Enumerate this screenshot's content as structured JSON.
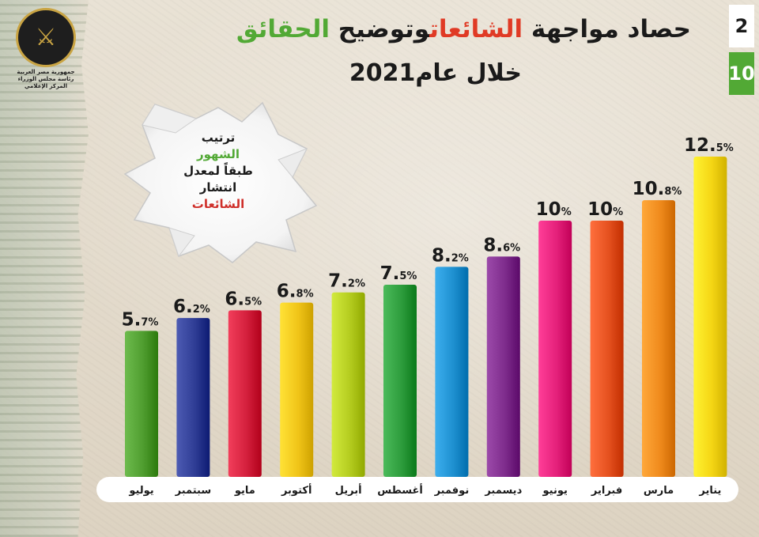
{
  "header": {
    "title_part1": "حصاد مواجهة",
    "title_part2": "الشائعات",
    "title_part3": "وتوضيح",
    "title_part4": "الحقائق",
    "subtitle": "خلال عام2021"
  },
  "pager": {
    "current": "2",
    "total": "10"
  },
  "logo": {
    "top_text": "جمهورية مصر العربية",
    "mid_text": "رئاسة مجلس الوزراء",
    "bottom_text": "المركز الإعلامي"
  },
  "callout": {
    "line1": "ترتيب",
    "line2": "الشهور",
    "line3": "طبقاً لمعدل",
    "line4": "انتشار",
    "line5": "الشائعات"
  },
  "chart_data": {
    "type": "bar",
    "categories": [
      "يوليو",
      "سبتمبر",
      "مايو",
      "أكتوبر",
      "أبريل",
      "أغسطس",
      "نوفمبر",
      "ديسمبر",
      "يونيو",
      "فبراير",
      "مارس",
      "يناير"
    ],
    "values": [
      5.7,
      6.2,
      6.5,
      6.8,
      7.2,
      7.5,
      8.2,
      8.6,
      10,
      10,
      10.8,
      12.5
    ],
    "labels_major": [
      "5.",
      "6.",
      "6.",
      "6.",
      "7.",
      "7.",
      "8.",
      "8.",
      "10",
      "10",
      "10.",
      "12."
    ],
    "labels_minor": [
      "7%",
      "2%",
      "5%",
      "8%",
      "2%",
      "5%",
      "2%",
      "6%",
      "%",
      "%",
      "8%",
      "5%"
    ],
    "colors": [
      "#4f9d2f",
      "#2f3d95",
      "#d4203d",
      "#f0c418",
      "#b4cc1f",
      "#2d9c3c",
      "#1e90d0",
      "#7e2c8c",
      "#e4207a",
      "#e5511f",
      "#ef8a1c",
      "#f4d514"
    ],
    "ylim": [
      0,
      12.5
    ],
    "title": "",
    "xlabel": "",
    "ylabel": ""
  }
}
